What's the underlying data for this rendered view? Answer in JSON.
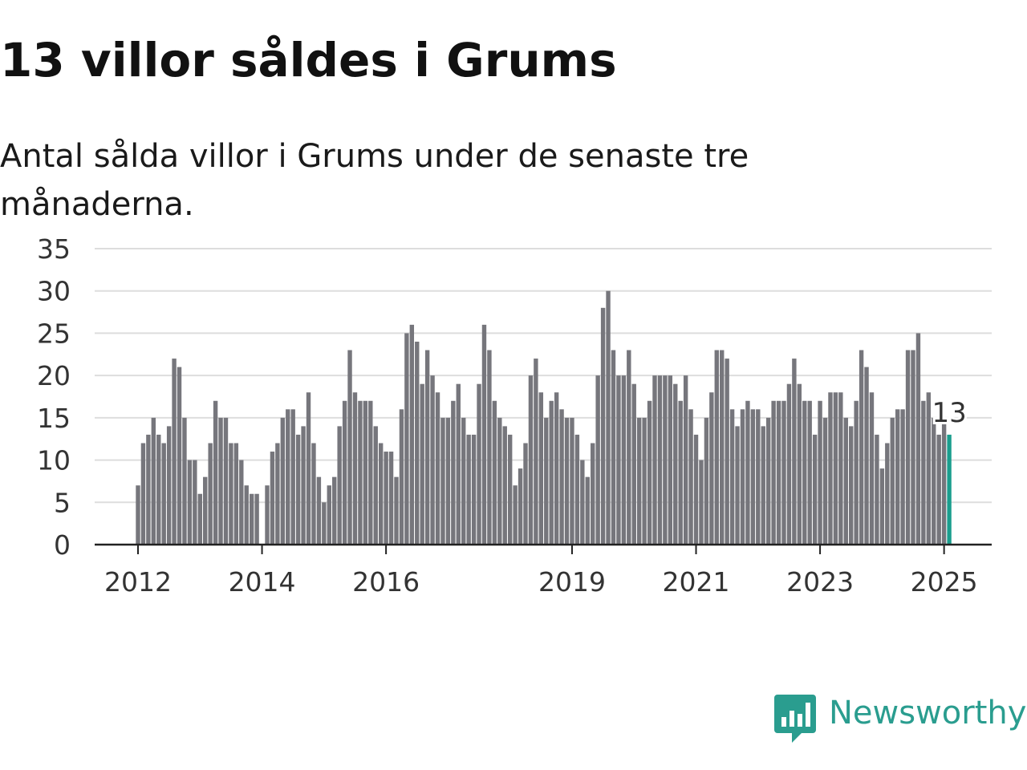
{
  "title": "13 villor såldes i Grums",
  "subtitle": "Antal sålda villor i Grums under de senaste tre månaderna.",
  "brand": {
    "name": "Newsworthy",
    "color": "#2a9d8f"
  },
  "colors": {
    "bar": "#76767c",
    "highlight": "#1a9e8e",
    "grid": "#dddddd",
    "axis": "#222222"
  },
  "chart_data": {
    "type": "bar",
    "start_month": "2012-01",
    "values": [
      7,
      12,
      13,
      15,
      13,
      12,
      14,
      22,
      21,
      15,
      10,
      10,
      6,
      8,
      12,
      17,
      15,
      15,
      12,
      12,
      10,
      7,
      6,
      6,
      0,
      7,
      11,
      12,
      15,
      16,
      16,
      13,
      14,
      18,
      12,
      8,
      5,
      7,
      8,
      14,
      17,
      23,
      18,
      17,
      17,
      17,
      14,
      12,
      11,
      11,
      8,
      16,
      25,
      26,
      24,
      19,
      23,
      20,
      18,
      15,
      15,
      17,
      19,
      15,
      13,
      13,
      19,
      26,
      23,
      17,
      15,
      14,
      13,
      7,
      9,
      12,
      20,
      22,
      18,
      15,
      17,
      18,
      16,
      15,
      15,
      13,
      10,
      8,
      12,
      20,
      28,
      30,
      23,
      20,
      20,
      23,
      19,
      15,
      15,
      17,
      20,
      20,
      20,
      20,
      19,
      17,
      20,
      16,
      13,
      10,
      15,
      18,
      23,
      23,
      22,
      16,
      14,
      16,
      17,
      16,
      16,
      14,
      15,
      17,
      17,
      17,
      19,
      22,
      19,
      17,
      17,
      13,
      17,
      15,
      18,
      18,
      18,
      15,
      14,
      17,
      23,
      21,
      18,
      13,
      9,
      12,
      15,
      16,
      16,
      23,
      23,
      25,
      17,
      18,
      15,
      13,
      14.5,
      13
    ],
    "highlight_last": true,
    "last_value_label": "13",
    "y_ticks": [
      0,
      5,
      10,
      15,
      20,
      25,
      30,
      35
    ],
    "ylim": [
      0,
      35
    ],
    "x_tick_labels": [
      "2012",
      "2014",
      "2016",
      "2019",
      "2021",
      "2023",
      "2025"
    ],
    "x_tick_index": [
      0,
      24,
      48,
      84,
      108,
      132,
      156
    ],
    "grid": true
  }
}
